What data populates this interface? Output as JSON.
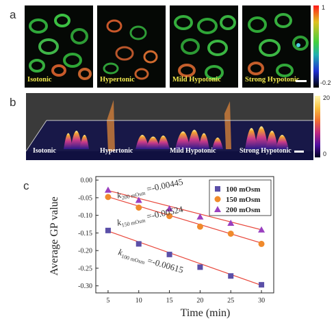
{
  "panel_a": {
    "letter": "a",
    "images": [
      {
        "caption": "Isotonic"
      },
      {
        "caption": "Hypertonic"
      },
      {
        "caption": "Mild Hypotonic"
      },
      {
        "caption": "Strong Hypotonic"
      }
    ],
    "colorbar": {
      "max_label": "1",
      "min_label": "-0.2"
    }
  },
  "panel_b": {
    "letter": "b",
    "captions": [
      "Isotonic",
      "Hypertonic",
      "Mild Hypotonic",
      "Strong  Hypotonic"
    ],
    "colorbar": {
      "max_label": "20",
      "min_label": "0"
    }
  },
  "panel_c": {
    "letter": "c",
    "annotations": [
      {
        "main": "k",
        "sub": "200 mOsm",
        "rest": " =-0.00445"
      },
      {
        "main": "k",
        "sub": "150 mOsm",
        "rest": " =-0.00524"
      },
      {
        "main": "k",
        "sub": "100 mOsm",
        "rest": " =-0.00615"
      }
    ]
  },
  "chart_data": {
    "type": "scatter",
    "title": "",
    "xlabel": "Time (min)",
    "ylabel": "Average GP value",
    "x": [
      5,
      10,
      15,
      20,
      25,
      30
    ],
    "xlim": [
      3,
      32
    ],
    "ylim": [
      -0.32,
      0.01
    ],
    "x_ticks": [
      "5",
      "10",
      "15",
      "20",
      "25",
      "30"
    ],
    "y_ticks": [
      "0.00",
      "-0.05",
      "-0.10",
      "-0.15",
      "-0.20",
      "-0.25",
      "-0.30"
    ],
    "y_tick_values": [
      0.0,
      -0.05,
      -0.1,
      -0.15,
      -0.2,
      -0.25,
      -0.3
    ],
    "legend_position": "top-right",
    "series": [
      {
        "name": "100 mOsm",
        "marker": "square",
        "color": "#5b4fa8",
        "values": [
          -0.143,
          -0.181,
          -0.211,
          -0.247,
          -0.272,
          -0.297
        ],
        "fit": {
          "slope": -0.00615,
          "intercept": -0.114
        }
      },
      {
        "name": "150 mOsm",
        "marker": "circle",
        "color": "#f08a2c",
        "values": [
          -0.048,
          -0.078,
          -0.102,
          -0.132,
          -0.152,
          -0.181
        ],
        "fit": {
          "slope": -0.00524,
          "intercept": -0.0215
        }
      },
      {
        "name": "200 mOsm",
        "marker": "triangle",
        "color": "#9a3fbf",
        "values": [
          -0.028,
          -0.057,
          -0.081,
          -0.104,
          -0.122,
          -0.141
        ],
        "fit": {
          "slope": -0.00445,
          "intercept": -0.0075
        }
      }
    ],
    "fit_line_color": "#e8463a"
  }
}
